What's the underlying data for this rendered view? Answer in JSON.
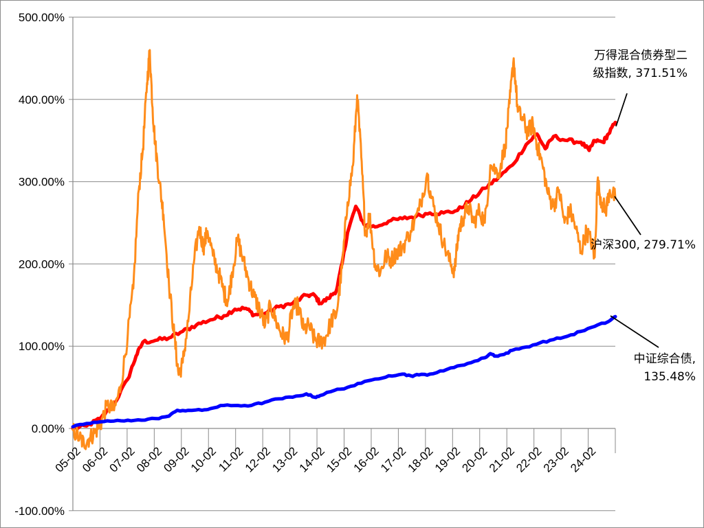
{
  "chart_data": {
    "type": "line",
    "title": "",
    "xlabel": "",
    "ylabel": "",
    "ylim": [
      -100,
      500
    ],
    "y_tick_labels": [
      "500.00%",
      "400.00%",
      "300.00%",
      "200.00%",
      "100.00%",
      "0.00%",
      "-100.00%"
    ],
    "y_ticks": [
      500,
      400,
      300,
      200,
      100,
      0,
      -100
    ],
    "x_range_years": [
      2005.0,
      2024.75
    ],
    "x_tick_labels": [
      "05-02",
      "06-02",
      "07-02",
      "08-02",
      "09-02",
      "10-02",
      "11-02",
      "12-02",
      "13-02",
      "14-02",
      "15-02",
      "16-02",
      "17-02",
      "18-02",
      "19-02",
      "20-02",
      "21-02",
      "22-02",
      "23-02",
      "24-02"
    ],
    "grid": "horizontal",
    "legend": "none",
    "series": [
      {
        "name": "万得混合债券型二级指数",
        "color": "#ff0000",
        "points": [
          [
            2005.0,
            0
          ],
          [
            2005.5,
            3
          ],
          [
            2006.0,
            12
          ],
          [
            2006.5,
            30
          ],
          [
            2007.0,
            60
          ],
          [
            2007.3,
            88
          ],
          [
            2007.55,
            105
          ],
          [
            2008.0,
            107
          ],
          [
            2008.5,
            110
          ],
          [
            2009.0,
            118
          ],
          [
            2009.5,
            126
          ],
          [
            2010.0,
            132
          ],
          [
            2010.5,
            137
          ],
          [
            2010.9,
            145
          ],
          [
            2011.3,
            146
          ],
          [
            2011.6,
            138
          ],
          [
            2012.0,
            140
          ],
          [
            2012.5,
            148
          ],
          [
            2013.0,
            152
          ],
          [
            2013.5,
            162
          ],
          [
            2013.8,
            162
          ],
          [
            2014.0,
            152
          ],
          [
            2014.3,
            158
          ],
          [
            2014.6,
            168
          ],
          [
            2014.8,
            200
          ],
          [
            2015.0,
            238
          ],
          [
            2015.3,
            270
          ],
          [
            2015.6,
            248
          ],
          [
            2016.0,
            245
          ],
          [
            2016.5,
            252
          ],
          [
            2017.0,
            255
          ],
          [
            2017.5,
            258
          ],
          [
            2018.0,
            262
          ],
          [
            2018.5,
            262
          ],
          [
            2019.0,
            265
          ],
          [
            2019.5,
            278
          ],
          [
            2020.0,
            292
          ],
          [
            2020.5,
            305
          ],
          [
            2021.0,
            320
          ],
          [
            2021.5,
            345
          ],
          [
            2021.9,
            358
          ],
          [
            2022.2,
            340
          ],
          [
            2022.5,
            355
          ],
          [
            2023.0,
            350
          ],
          [
            2023.5,
            348
          ],
          [
            2023.8,
            338
          ],
          [
            2024.0,
            350
          ],
          [
            2024.3,
            348
          ],
          [
            2024.5,
            358
          ],
          [
            2024.75,
            372
          ]
        ]
      },
      {
        "name": "沪深300",
        "color": "#ff8c1a",
        "points": [
          [
            2005.0,
            -2
          ],
          [
            2005.25,
            -12
          ],
          [
            2005.4,
            -18
          ],
          [
            2005.6,
            -12
          ],
          [
            2005.8,
            -5
          ],
          [
            2006.0,
            5
          ],
          [
            2006.25,
            28
          ],
          [
            2006.5,
            22
          ],
          [
            2006.75,
            52
          ],
          [
            2007.0,
            115
          ],
          [
            2007.2,
            170
          ],
          [
            2007.4,
            290
          ],
          [
            2007.55,
            340
          ],
          [
            2007.7,
            420
          ],
          [
            2007.8,
            460
          ],
          [
            2007.9,
            390
          ],
          [
            2008.0,
            345
          ],
          [
            2008.15,
            300
          ],
          [
            2008.3,
            260
          ],
          [
            2008.5,
            175
          ],
          [
            2008.7,
            110
          ],
          [
            2008.85,
            65
          ],
          [
            2009.0,
            80
          ],
          [
            2009.2,
            130
          ],
          [
            2009.4,
            200
          ],
          [
            2009.6,
            245
          ],
          [
            2009.75,
            220
          ],
          [
            2009.9,
            240
          ],
          [
            2010.1,
            210
          ],
          [
            2010.3,
            190
          ],
          [
            2010.5,
            165
          ],
          [
            2010.65,
            155
          ],
          [
            2010.8,
            190
          ],
          [
            2011.0,
            230
          ],
          [
            2011.2,
            205
          ],
          [
            2011.4,
            180
          ],
          [
            2011.6,
            160
          ],
          [
            2011.8,
            145
          ],
          [
            2012.0,
            125
          ],
          [
            2012.2,
            150
          ],
          [
            2012.4,
            130
          ],
          [
            2012.6,
            115
          ],
          [
            2012.8,
            108
          ],
          [
            2013.0,
            145
          ],
          [
            2013.2,
            150
          ],
          [
            2013.4,
            120
          ],
          [
            2013.6,
            125
          ],
          [
            2013.8,
            108
          ],
          [
            2014.0,
            105
          ],
          [
            2014.2,
            110
          ],
          [
            2014.4,
            130
          ],
          [
            2014.6,
            140
          ],
          [
            2014.8,
            195
          ],
          [
            2015.0,
            275
          ],
          [
            2015.2,
            320
          ],
          [
            2015.35,
            405
          ],
          [
            2015.5,
            330
          ],
          [
            2015.65,
            235
          ],
          [
            2015.8,
            260
          ],
          [
            2016.0,
            200
          ],
          [
            2016.2,
            190
          ],
          [
            2016.4,
            210
          ],
          [
            2016.6,
            205
          ],
          [
            2016.8,
            215
          ],
          [
            2017.0,
            220
          ],
          [
            2017.3,
            240
          ],
          [
            2017.6,
            265
          ],
          [
            2017.9,
            310
          ],
          [
            2018.05,
            280
          ],
          [
            2018.3,
            250
          ],
          [
            2018.5,
            225
          ],
          [
            2018.75,
            200
          ],
          [
            2018.9,
            192
          ],
          [
            2019.05,
            240
          ],
          [
            2019.2,
            255
          ],
          [
            2019.4,
            270
          ],
          [
            2019.6,
            250
          ],
          [
            2019.8,
            265
          ],
          [
            2020.0,
            250
          ],
          [
            2020.2,
            320
          ],
          [
            2020.5,
            310
          ],
          [
            2020.75,
            345
          ],
          [
            2020.9,
            395
          ],
          [
            2021.05,
            450
          ],
          [
            2021.2,
            385
          ],
          [
            2021.4,
            375
          ],
          [
            2021.55,
            360
          ],
          [
            2021.75,
            370
          ],
          [
            2021.9,
            345
          ],
          [
            2022.1,
            320
          ],
          [
            2022.3,
            285
          ],
          [
            2022.5,
            270
          ],
          [
            2022.7,
            290
          ],
          [
            2022.9,
            250
          ],
          [
            2023.1,
            265
          ],
          [
            2023.3,
            245
          ],
          [
            2023.5,
            215
          ],
          [
            2023.7,
            240
          ],
          [
            2023.9,
            225
          ],
          [
            2024.0,
            208
          ],
          [
            2024.1,
            300
          ],
          [
            2024.25,
            275
          ],
          [
            2024.4,
            265
          ],
          [
            2024.55,
            290
          ],
          [
            2024.75,
            280
          ]
        ]
      },
      {
        "name": "中证综合债",
        "color": "#0000ff",
        "points": [
          [
            2005.0,
            2
          ],
          [
            2005.5,
            6
          ],
          [
            2006.0,
            8
          ],
          [
            2006.5,
            9
          ],
          [
            2007.0,
            10
          ],
          [
            2007.5,
            10
          ],
          [
            2008.0,
            12
          ],
          [
            2008.5,
            15
          ],
          [
            2008.8,
            22
          ],
          [
            2009.2,
            22
          ],
          [
            2009.7,
            22
          ],
          [
            2010.0,
            24
          ],
          [
            2010.5,
            28
          ],
          [
            2011.0,
            28
          ],
          [
            2011.5,
            28
          ],
          [
            2012.0,
            32
          ],
          [
            2012.5,
            36
          ],
          [
            2013.0,
            38
          ],
          [
            2013.5,
            42
          ],
          [
            2013.8,
            38
          ],
          [
            2014.0,
            40
          ],
          [
            2014.5,
            46
          ],
          [
            2015.0,
            50
          ],
          [
            2015.5,
            55
          ],
          [
            2016.0,
            60
          ],
          [
            2016.5,
            64
          ],
          [
            2017.0,
            66
          ],
          [
            2017.3,
            64
          ],
          [
            2017.6,
            65
          ],
          [
            2018.0,
            66
          ],
          [
            2018.5,
            70
          ],
          [
            2019.0,
            76
          ],
          [
            2019.5,
            80
          ],
          [
            2020.0,
            86
          ],
          [
            2020.2,
            91
          ],
          [
            2020.4,
            88
          ],
          [
            2020.7,
            90
          ],
          [
            2021.0,
            95
          ],
          [
            2021.5,
            99
          ],
          [
            2022.0,
            104
          ],
          [
            2022.5,
            108
          ],
          [
            2023.0,
            112
          ],
          [
            2023.5,
            118
          ],
          [
            2024.0,
            124
          ],
          [
            2024.5,
            130
          ],
          [
            2024.75,
            136
          ]
        ]
      }
    ],
    "annotations": [
      {
        "lines": [
          "万得混合债券型二",
          "级指数, 371.51%"
        ],
        "series": "万得混合债券型二级指数",
        "value": 371.51
      },
      {
        "lines": [
          "沪深300, 279.71%"
        ],
        "series": "沪深300",
        "value": 279.71
      },
      {
        "lines": [
          "中证综合债,",
          "135.48%"
        ],
        "series": "中证综合债",
        "value": 135.48
      }
    ]
  }
}
